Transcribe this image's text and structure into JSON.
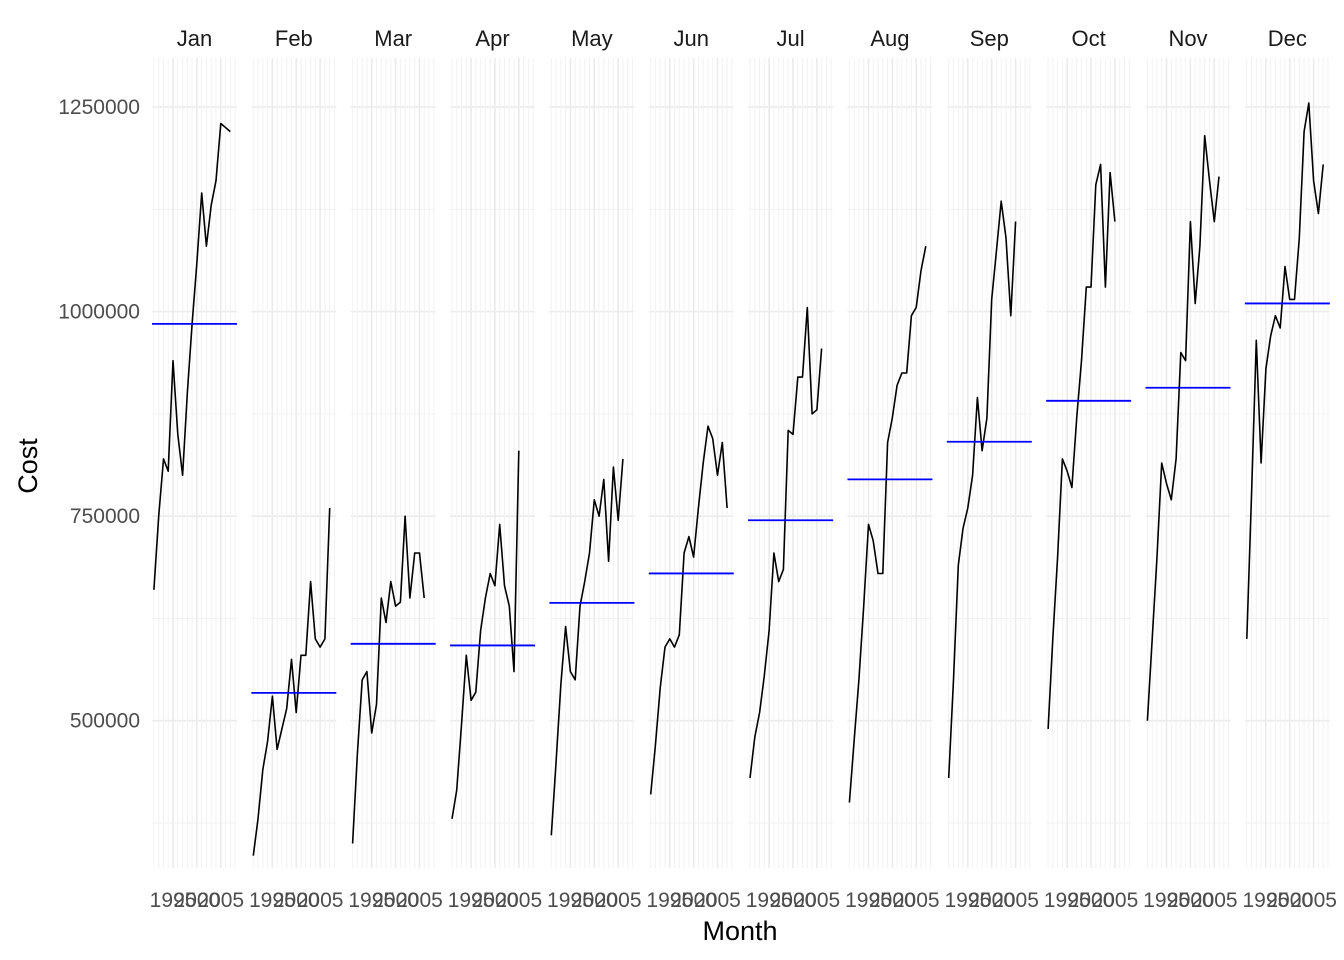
{
  "chart_data": {
    "type": "line",
    "subtype": "seasonal-subseries",
    "xlabel": "Month",
    "ylabel": "Cost",
    "ylim": [
      320000,
      1310000
    ],
    "xlim": [
      1990.6,
      2008.4
    ],
    "y_ticks": [
      500000,
      750000,
      1000000,
      1250000
    ],
    "y_tick_labels": [
      "500000",
      "750000",
      "1000000",
      "1250000"
    ],
    "x_ticks": [
      1995,
      2000,
      2005
    ],
    "x_tick_labels": [
      "1995",
      "2000",
      "2005"
    ],
    "grid": true,
    "line_color": "#000000",
    "mean_color": "#0000ff",
    "x": [
      1991,
      1992,
      1993,
      1994,
      1995,
      1996,
      1997,
      1998,
      1999,
      2000,
      2001,
      2002,
      2003,
      2004,
      2005,
      2006,
      2007,
      2008
    ],
    "facets": [
      {
        "label": "Jan",
        "mean": 985000,
        "values": [
          660000,
          750000,
          820000,
          805000,
          940000,
          850000,
          800000,
          900000,
          985000,
          1060000,
          1145000,
          1080000,
          1130000,
          1160000,
          1230000,
          1225000,
          1220000
        ]
      },
      {
        "label": "Feb",
        "mean": 534000,
        "values": [
          335000,
          380000,
          440000,
          475000,
          530000,
          465000,
          490000,
          515000,
          575000,
          510000,
          580000,
          580000,
          670000,
          600000,
          590000,
          600000,
          760000
        ]
      },
      {
        "label": "Mar",
        "mean": 594000,
        "values": [
          350000,
          460000,
          550000,
          560000,
          485000,
          520000,
          650000,
          620000,
          670000,
          640000,
          645000,
          750000,
          650000,
          705000,
          705000,
          650000
        ]
      },
      {
        "label": "Apr",
        "mean": 592000,
        "values": [
          380000,
          415000,
          495000,
          580000,
          525000,
          535000,
          610000,
          650000,
          680000,
          665000,
          740000,
          665000,
          640000,
          560000,
          830000
        ]
      },
      {
        "label": "May",
        "mean": 644000,
        "values": [
          360000,
          450000,
          545000,
          615000,
          560000,
          550000,
          640000,
          670000,
          705000,
          770000,
          750000,
          795000,
          695000,
          810000,
          745000,
          820000
        ]
      },
      {
        "label": "Jun",
        "mean": 680000,
        "values": [
          410000,
          470000,
          540000,
          590000,
          600000,
          590000,
          605000,
          705000,
          725000,
          700000,
          760000,
          815000,
          860000,
          845000,
          800000,
          840000,
          760000
        ]
      },
      {
        "label": "Jul",
        "mean": 745000,
        "values": [
          430000,
          480000,
          510000,
          555000,
          610000,
          705000,
          670000,
          685000,
          855000,
          850000,
          920000,
          920000,
          1005000,
          875000,
          880000,
          955000
        ]
      },
      {
        "label": "Aug",
        "mean": 795000,
        "values": [
          400000,
          475000,
          550000,
          640000,
          740000,
          720000,
          680000,
          680000,
          840000,
          870000,
          910000,
          925000,
          925000,
          995000,
          1005000,
          1050000,
          1080000
        ]
      },
      {
        "label": "Sep",
        "mean": 841000,
        "values": [
          430000,
          550000,
          690000,
          735000,
          760000,
          800000,
          895000,
          830000,
          870000,
          1015000,
          1075000,
          1135000,
          1090000,
          995000,
          1110000
        ]
      },
      {
        "label": "Oct",
        "mean": 891000,
        "values": [
          490000,
          600000,
          700000,
          820000,
          805000,
          785000,
          870000,
          940000,
          1030000,
          1030000,
          1155000,
          1180000,
          1030000,
          1170000,
          1110000
        ]
      },
      {
        "label": "Nov",
        "mean": 907000,
        "values": [
          500000,
          600000,
          700000,
          815000,
          790000,
          770000,
          820000,
          950000,
          940000,
          1110000,
          1010000,
          1080000,
          1215000,
          1160000,
          1110000,
          1165000
        ]
      },
      {
        "label": "Dec",
        "mean": 1010000,
        "values": [
          600000,
          775000,
          965000,
          815000,
          930000,
          970000,
          995000,
          980000,
          1055000,
          1015000,
          1015000,
          1090000,
          1220000,
          1255000,
          1160000,
          1120000,
          1180000
        ]
      }
    ]
  }
}
